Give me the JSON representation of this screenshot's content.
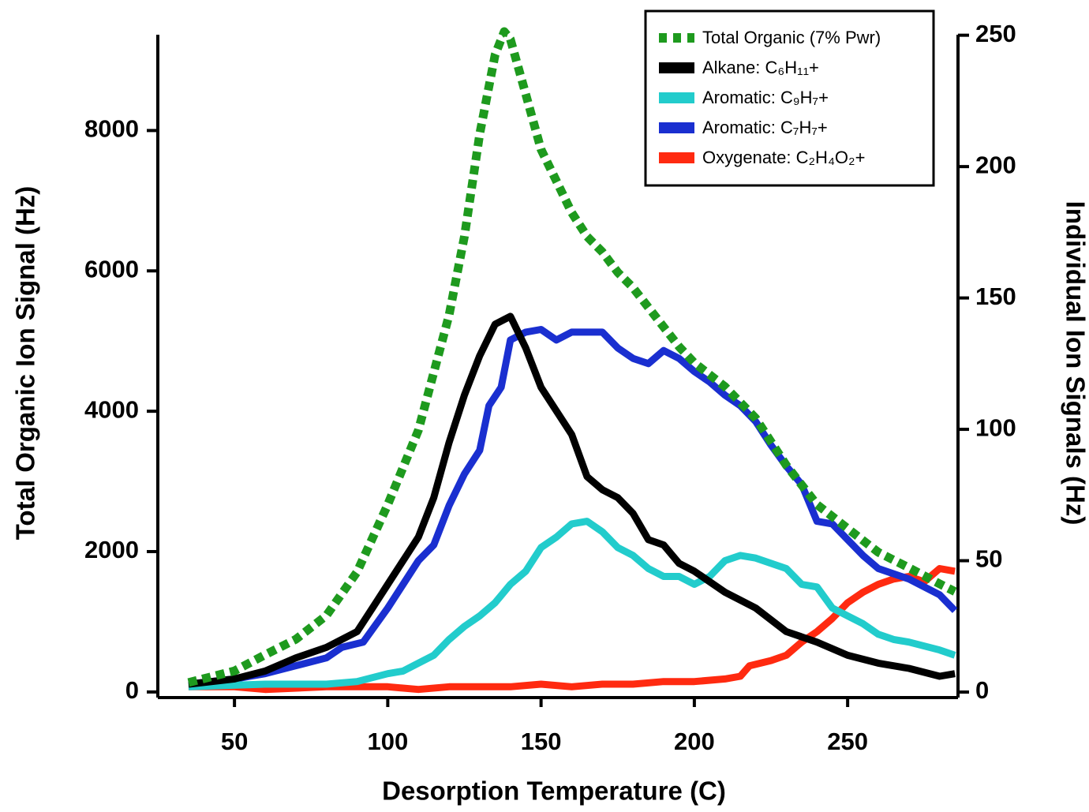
{
  "chart_data": {
    "type": "line",
    "xlabel": "Desorption Temperature (C)",
    "ylabel": "Total Organic Ion Signal (Hz)",
    "y2label": "Individual Ion Signals (Hz)",
    "xlim": [
      25,
      286
    ],
    "xticks": [
      50,
      100,
      150,
      200,
      250
    ],
    "ylim": [
      -80,
      9500
    ],
    "yticks": [
      0,
      2000,
      4000,
      6000,
      8000
    ],
    "y2lim": [
      -2.1,
      253.8
    ],
    "y2ticks": [
      0,
      50,
      100,
      150,
      200,
      250
    ],
    "legend": "upper right",
    "series": [
      {
        "name": "Total Organic (7% Pwr)",
        "color": "#1e9a1e",
        "dashed": true,
        "axis": "y",
        "x": [
          35,
          50,
          60,
          70,
          80,
          90,
          100,
          110,
          120,
          125,
          130,
          135,
          138,
          140,
          145,
          150,
          155,
          160,
          165,
          170,
          175,
          180,
          185,
          190,
          195,
          200,
          210,
          220,
          230,
          240,
          250,
          260,
          270,
          280,
          285
        ],
        "values": [
          135,
          300,
          530,
          750,
          1090,
          1710,
          2670,
          3730,
          5370,
          6490,
          7950,
          9080,
          9410,
          9300,
          8520,
          7730,
          7280,
          6830,
          6490,
          6270,
          5980,
          5760,
          5480,
          5200,
          4920,
          4690,
          4350,
          3900,
          3230,
          2670,
          2330,
          1990,
          1770,
          1540,
          1430
        ]
      },
      {
        "name": "Alkane: C₆H₁₁+",
        "color": "#000000",
        "axis": "y2",
        "x": [
          35,
          50,
          60,
          70,
          80,
          90,
          95,
          100,
          110,
          115,
          120,
          125,
          130,
          135,
          140,
          145,
          150,
          155,
          160,
          165,
          170,
          175,
          180,
          185,
          190,
          195,
          200,
          210,
          220,
          230,
          240,
          250,
          260,
          270,
          280,
          285
        ],
        "values": [
          3,
          5,
          8,
          13,
          17,
          23,
          32,
          41,
          59,
          74,
          95,
          113,
          128,
          140,
          143,
          131,
          116,
          107,
          98,
          82,
          77,
          74,
          68,
          58,
          56,
          49,
          46,
          38,
          32,
          23,
          19,
          14,
          11,
          9,
          6,
          7
        ]
      },
      {
        "name": "Aromatic: C₉H₇+",
        "color": "#22cccc",
        "axis": "y2",
        "x": [
          35,
          60,
          80,
          90,
          100,
          105,
          110,
          115,
          120,
          125,
          130,
          135,
          140,
          145,
          150,
          155,
          160,
          165,
          170,
          175,
          180,
          185,
          190,
          195,
          200,
          205,
          210,
          215,
          220,
          225,
          230,
          235,
          240,
          245,
          250,
          255,
          260,
          265,
          270,
          280,
          285
        ],
        "values": [
          2,
          3,
          3,
          4,
          7,
          8,
          11,
          14,
          20,
          25,
          29,
          34,
          41,
          46,
          55,
          59,
          64,
          65,
          61,
          55,
          52,
          47,
          44,
          44,
          41,
          44,
          50,
          52,
          51,
          49,
          47,
          41,
          40,
          32,
          29,
          26,
          22,
          20,
          19,
          16,
          14
        ]
      },
      {
        "name": "Aromatic: C₇H₇+",
        "color": "#1a2fd0",
        "axis": "y2",
        "x": [
          35,
          50,
          60,
          70,
          80,
          85,
          92,
          100,
          105,
          110,
          115,
          120,
          125,
          130,
          133,
          137,
          140,
          145,
          150,
          155,
          160,
          165,
          170,
          175,
          180,
          185,
          190,
          195,
          200,
          205,
          210,
          215,
          220,
          225,
          230,
          235,
          240,
          245,
          250,
          255,
          260,
          270,
          280,
          285
        ],
        "values": [
          3,
          5,
          7,
          10,
          13,
          17,
          19,
          32,
          41,
          50,
          56,
          71,
          83,
          92,
          109,
          116,
          134,
          137,
          138,
          134,
          137,
          137,
          137,
          131,
          127,
          125,
          130,
          127,
          122,
          118,
          113,
          109,
          103,
          94,
          86,
          79,
          65,
          64,
          58,
          52,
          47,
          43,
          37,
          31
        ]
      },
      {
        "name": "Oxygenate: C₂H₄O₂+",
        "color": "#ff2a10",
        "axis": "y2",
        "x": [
          35,
          50,
          60,
          80,
          90,
          100,
          110,
          120,
          130,
          140,
          150,
          160,
          170,
          180,
          190,
          200,
          210,
          215,
          218,
          225,
          230,
          235,
          240,
          245,
          250,
          255,
          260,
          265,
          270,
          275,
          280,
          285
        ],
        "values": [
          2,
          2,
          1,
          2,
          2,
          2,
          1,
          2,
          2,
          2,
          3,
          2,
          3,
          3,
          4,
          4,
          5,
          6,
          10,
          12,
          14,
          19,
          23,
          28,
          34,
          38,
          41,
          43,
          44,
          42,
          47,
          46
        ]
      }
    ]
  }
}
